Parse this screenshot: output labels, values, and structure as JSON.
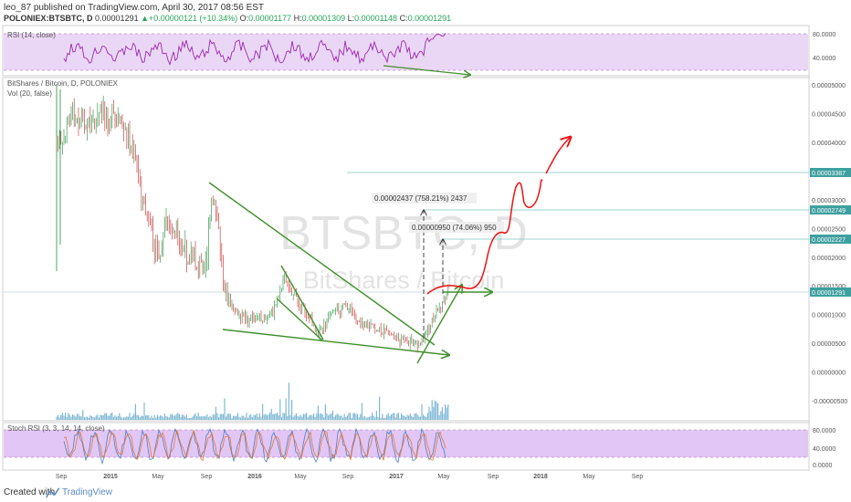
{
  "header": {
    "publisher": "leo_87",
    "published_text": "published on TradingView.com, April 30, 2017 08:56 EST",
    "symbol": "POLONIEX:BTSBTC, D",
    "price": "0.00001291",
    "change": "+0.00000121 (+10.34%)",
    "open_label": "O:",
    "open": "0.00001177",
    "high_label": "H:",
    "high": "0.00001309",
    "low_label": "L:",
    "low": "0.00001148",
    "close_label": "C:",
    "close": "0.00001291"
  },
  "footer": {
    "created_with": "Created with",
    "brand": "TradingView"
  },
  "colors": {
    "rsi_line": "#9c27b0",
    "rsi_band": "#ead7f5",
    "stoch_band": "#e2c6f5",
    "trendline": "#3f8f2a",
    "projection": "#ee1111",
    "level_line": "#7fc4c4",
    "price_tag": "#3e9f9f",
    "volume": "#7fb8d6",
    "watermark": "#e3e3e3"
  },
  "chart_data": [
    {
      "type": "line",
      "panel": "rsi",
      "indicator_label": "RSI (14, close)",
      "y_ticks": [
        80,
        40
      ],
      "y_tick_labels": [
        "80.0000",
        "40.0000"
      ],
      "band": [
        30,
        70
      ]
    },
    {
      "type": "candlestick",
      "panel": "main",
      "title": "BitShares / Bitcoin, D, POLONIEX",
      "volume_label": "Vol (20, false)",
      "watermark_symbol": "BTSBTC, D",
      "watermark_name": "BitShares / Bitcoin",
      "x_tick_labels": [
        "Sep",
        "2015",
        "May",
        "Sep",
        "2016",
        "May",
        "Sep",
        "2017",
        "May",
        "Sep",
        "2018",
        "May",
        "Sep"
      ],
      "y_tick_labels": [
        "0.00005000",
        "0.00004500",
        "0.00004000",
        "0.00003500",
        "0.00003000",
        "0.00002500",
        "0.00002000",
        "0.00001500",
        "0.00001000",
        "0.00000500",
        "0.00000000",
        "-0.00000500"
      ],
      "y_ticks": [
        5e-05,
        4.5e-05,
        4e-05,
        3.5e-05,
        3e-05,
        2.5e-05,
        2e-05,
        1.5e-05,
        1e-05,
        5e-06,
        0,
        -5e-06
      ],
      "ylim": [
        -6.1e-06,
        5.08e-05
      ],
      "price_tags": [
        "0.00003387",
        "0.00002749",
        "0.00002227",
        "0.00001291"
      ],
      "price_levels": [
        3.387e-05,
        2.749e-05,
        2.227e-05,
        1.291e-05
      ],
      "measure_labels": [
        "0.00002437 (758.21%) 2437",
        "0.00000950 (74.06%) 950"
      ],
      "measure_values": [
        2.437e-05,
        9.5e-06
      ]
    },
    {
      "type": "line",
      "panel": "stoch",
      "indicator_label": "Stoch RSI (3, 3, 14, 14, close)",
      "y_ticks": [
        80,
        40,
        0
      ],
      "y_tick_labels": [
        "80.0000",
        "40.0000",
        "0.0000"
      ],
      "band": [
        20,
        80
      ]
    }
  ]
}
